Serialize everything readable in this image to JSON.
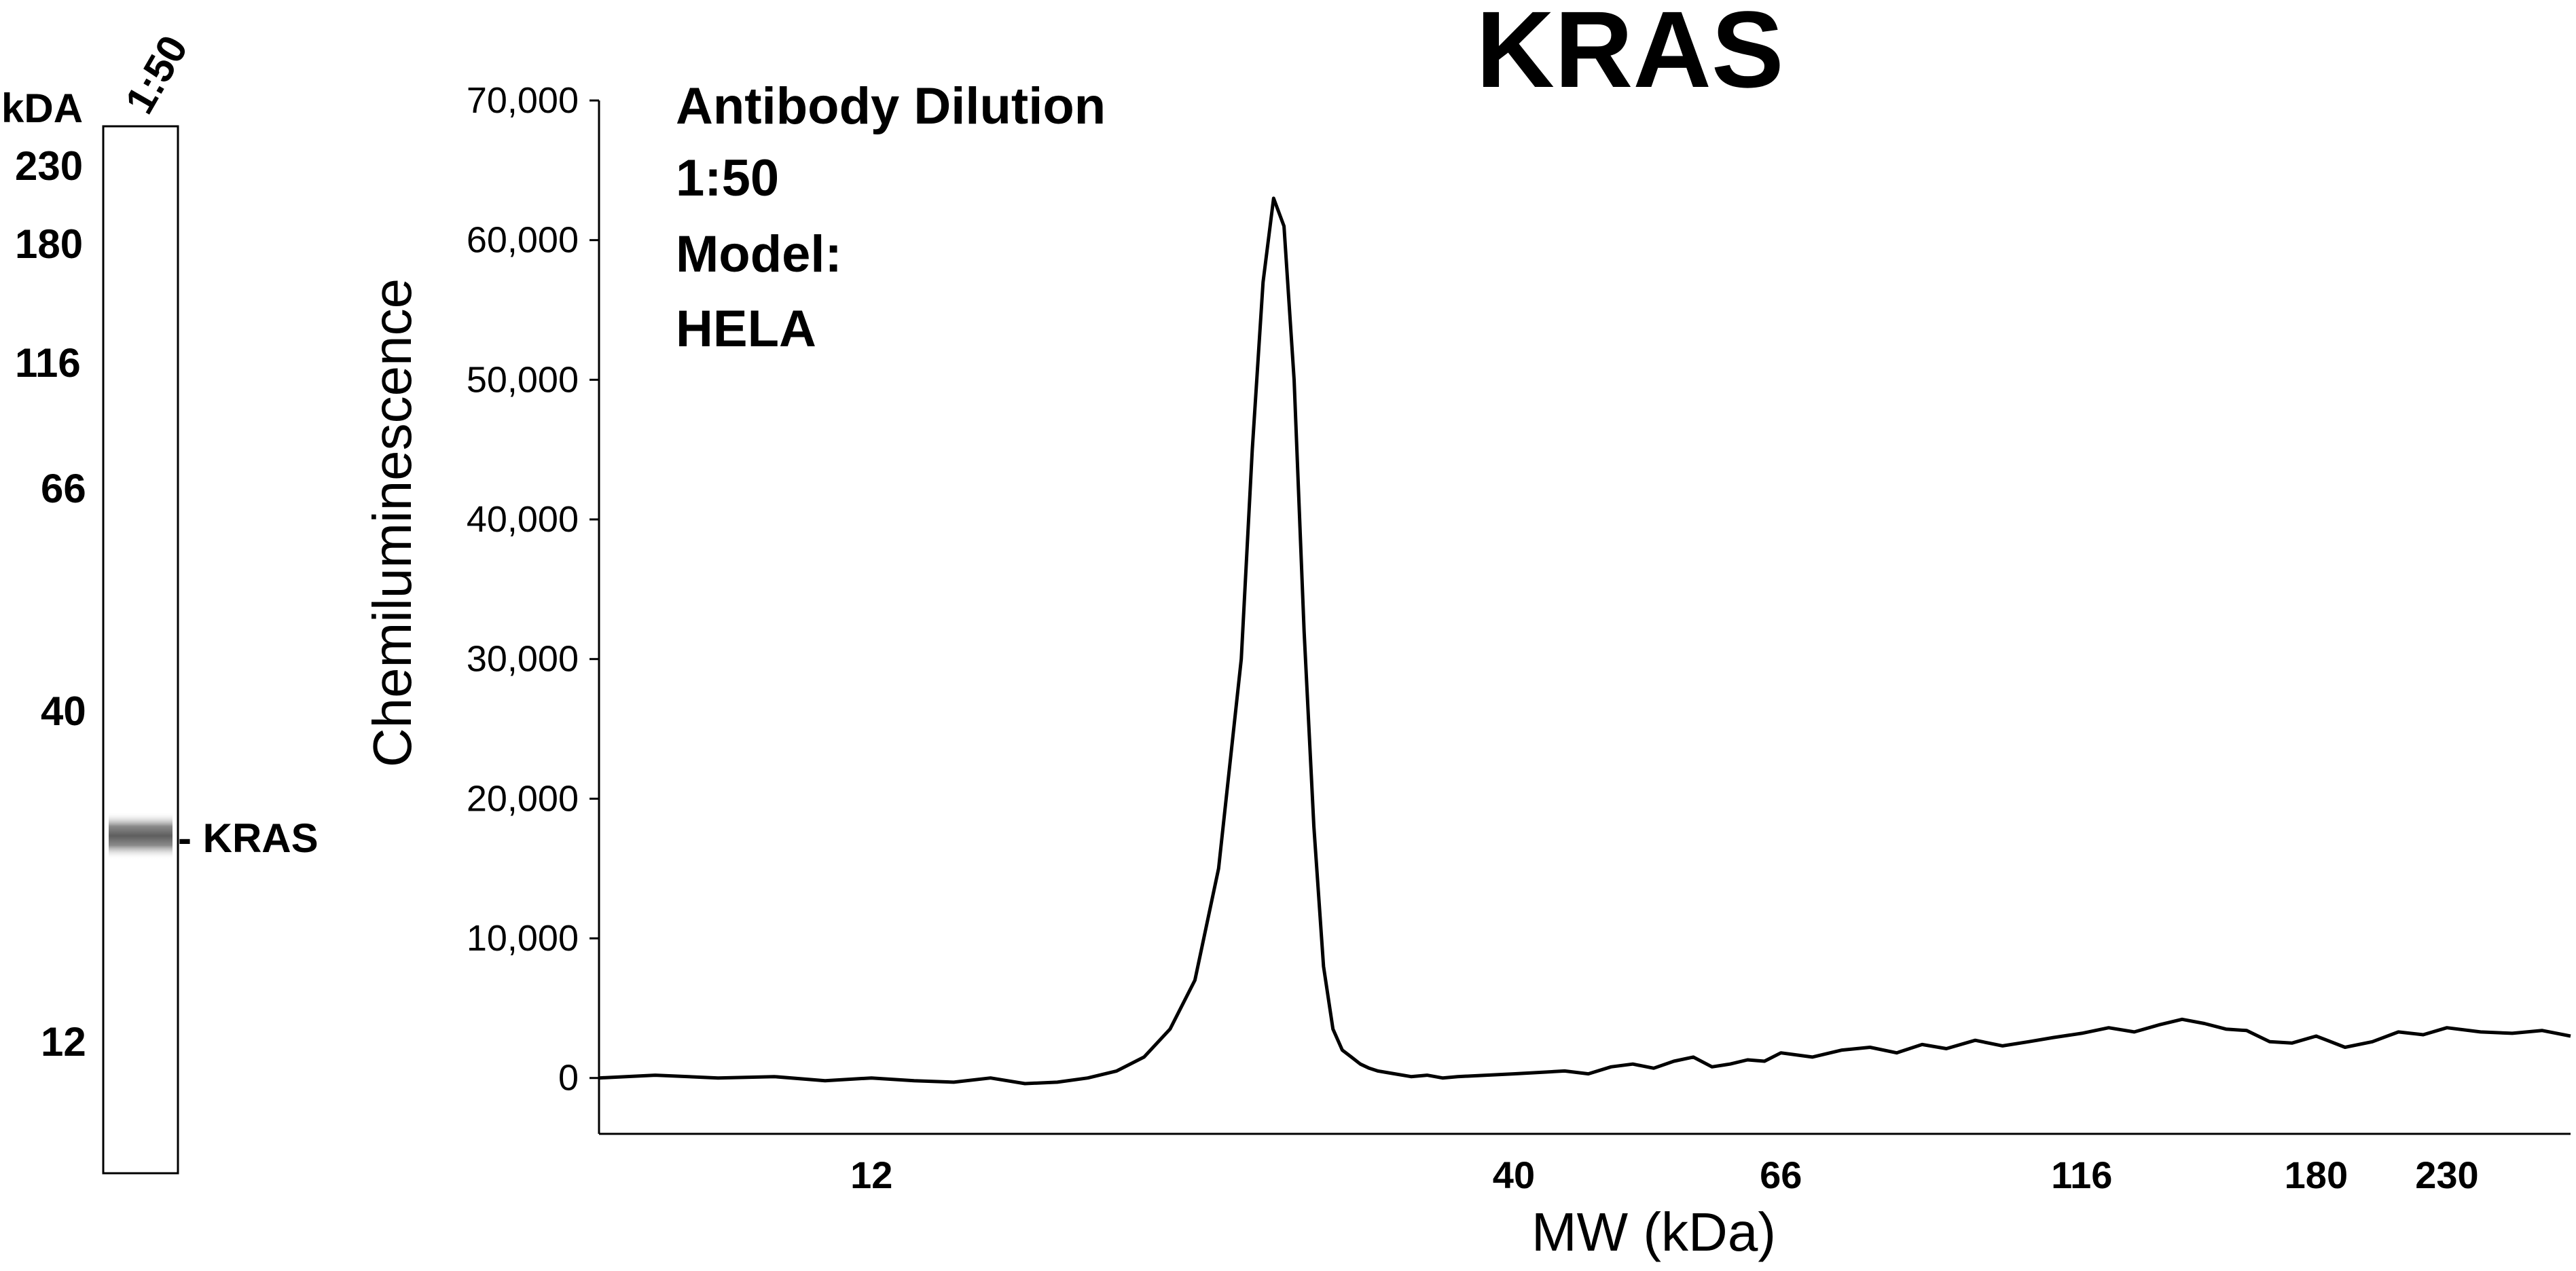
{
  "blot": {
    "unit_label": "kDA",
    "lane_label": "1:50",
    "markers": [
      "230",
      "180",
      "116",
      "66",
      "40",
      "12"
    ],
    "band_label": "- KRAS"
  },
  "chart_data": {
    "type": "line",
    "title": "KRAS",
    "xlabel": "MW (kDa)",
    "ylabel": "Chemiluminescence",
    "x_scale": "log",
    "xlim": [
      7.2,
      290
    ],
    "ylim": [
      -4000,
      70000
    ],
    "x_ticks": [
      12,
      40,
      66,
      116,
      180,
      230
    ],
    "x_tick_labels": [
      "12",
      "40",
      "66",
      "116",
      "180",
      "230"
    ],
    "y_ticks": [
      0,
      10000,
      20000,
      30000,
      40000,
      50000,
      60000,
      70000
    ],
    "y_tick_labels": [
      "0",
      "10,000",
      "20,000",
      "30,000",
      "40,000",
      "50,000",
      "60,000",
      "70,000"
    ],
    "grid": false,
    "annotations": [
      "Antibody Dilution",
      "1:50",
      "Model:",
      "HELA"
    ],
    "series": [
      {
        "x": [
          7.2,
          8.0,
          9.0,
          10.0,
          11.0,
          12.0,
          13.0,
          14.0,
          15.0,
          16.0,
          17.0,
          18.0,
          19.0,
          20.0,
          21.0,
          22.0,
          23.0,
          24.0,
          24.5,
          25.0,
          25.5,
          26.0,
          26.5,
          27.0,
          27.5,
          28.0,
          28.5,
          29.0,
          29.5,
          30.0,
          30.5,
          31.0,
          32.0,
          33.0,
          34.0,
          35.0,
          36.0,
          38.0,
          40.0,
          42.0,
          44.0,
          46.0,
          48.0,
          50.0,
          52.0,
          54.0,
          56.0,
          58.0,
          60.0,
          62.0,
          64.0,
          66.0,
          70.0,
          74.0,
          78.0,
          82.0,
          86.0,
          90.0,
          95.0,
          100.0,
          105.0,
          110.0,
          116.0,
          122.0,
          128.0,
          134.0,
          140.0,
          146.0,
          152.0,
          158.0,
          165.0,
          172.0,
          180.0,
          190.0,
          200.0,
          210.0,
          220.0,
          230.0,
          245.0,
          260.0,
          275.0,
          290.0
        ],
        "y": [
          0,
          200,
          0,
          100,
          -200,
          0,
          -200,
          -300,
          0,
          -400,
          -300,
          0,
          500,
          1500,
          3500,
          7000,
          15000,
          30000,
          45000,
          57000,
          63000,
          61000,
          50000,
          32000,
          18000,
          8000,
          3500,
          2000,
          1500,
          1000,
          700,
          500,
          300,
          100,
          200,
          0,
          100,
          200,
          300,
          400,
          500,
          300,
          800,
          1000,
          700,
          1200,
          1500,
          800,
          1000,
          1300,
          1200,
          1800,
          1500,
          2000,
          2200,
          1800,
          2400,
          2100,
          2700,
          2300,
          2600,
          2900,
          3200,
          3600,
          3300,
          3800,
          4200,
          3900,
          3500,
          3400,
          2600,
          2500,
          3000,
          2200,
          2600,
          3300,
          3100,
          3600,
          3300,
          3200,
          3400,
          3000
        ]
      }
    ]
  }
}
